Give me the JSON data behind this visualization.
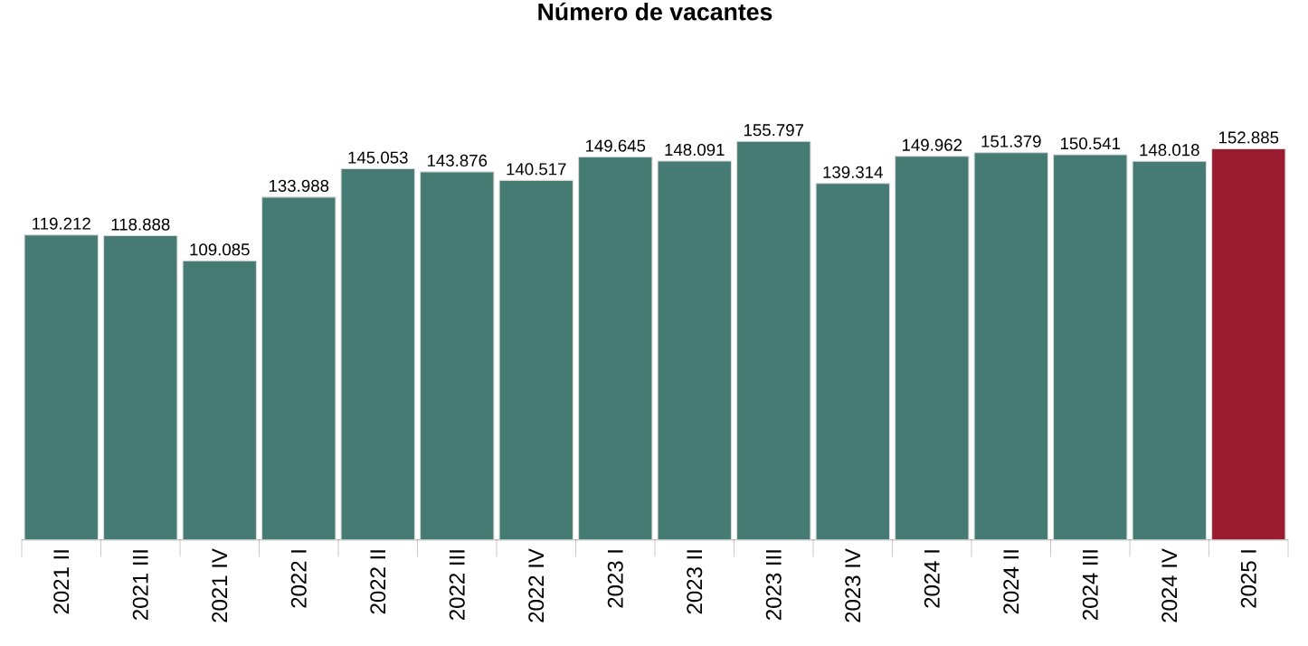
{
  "chart_data": {
    "type": "bar",
    "title": "**Número de vacantes**",
    "categories": [
      "2021 II",
      "2021 III",
      "2021 IV",
      "2022 I",
      "2022 II",
      "2022 III",
      "2022 IV",
      "2023 I",
      "2023 II",
      "2023 III",
      "2023 IV",
      "2024 I",
      "2024 II",
      "2024 III",
      "2024 IV",
      "2025 I"
    ],
    "values": [
      119212,
      118888,
      109085,
      133988,
      145053,
      143876,
      140517,
      149645,
      148091,
      155797,
      139314,
      149962,
      151379,
      150541,
      148018,
      152885
    ],
    "value_labels": [
      "119.212",
      "118.888",
      "109.085",
      "133.988",
      "145.053",
      "143.876",
      "140.517",
      "149.645",
      "148.091",
      "155.797",
      "139.314",
      "149.962",
      "151.379",
      "150.541",
      "148.018",
      "152.885"
    ],
    "colors": [
      "#457b73",
      "#457b73",
      "#457b73",
      "#457b73",
      "#457b73",
      "#457b73",
      "#457b73",
      "#457b73",
      "#457b73",
      "#457b73",
      "#457b73",
      "#457b73",
      "#457b73",
      "#457b73",
      "#457b73",
      "#9b1b30"
    ]
  }
}
